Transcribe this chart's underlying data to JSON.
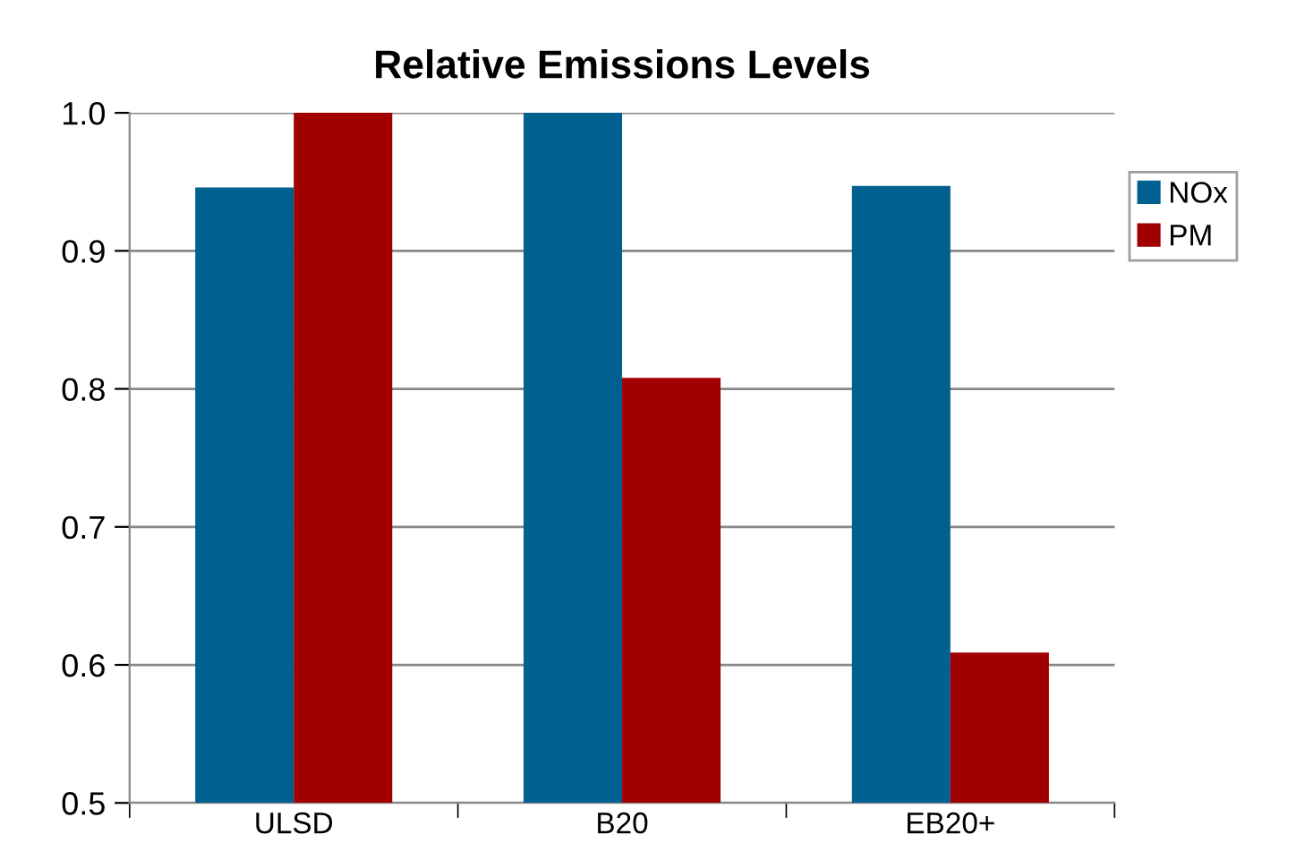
{
  "chart_data": {
    "type": "bar",
    "title": "Relative Emissions Levels",
    "categories": [
      "ULSD",
      "B20",
      "EB20+"
    ],
    "series": [
      {
        "name": "NOx",
        "color": "#00608f",
        "values": [
          0.946,
          1.0,
          0.947
        ]
      },
      {
        "name": "PM",
        "color": "#a00000",
        "values": [
          1.0,
          0.808,
          0.609
        ]
      }
    ],
    "ylim": [
      0.5,
      1.0
    ],
    "yticks": [
      {
        "value": 0.5,
        "label": "0.5"
      },
      {
        "value": 0.6,
        "label": "0.6"
      },
      {
        "value": 0.7,
        "label": "0.7"
      },
      {
        "value": 0.8,
        "label": "0.8"
      },
      {
        "value": 0.9,
        "label": "0.9"
      },
      {
        "value": 1.0,
        "label": "1.0"
      }
    ],
    "grid": "y",
    "legend": "right"
  }
}
